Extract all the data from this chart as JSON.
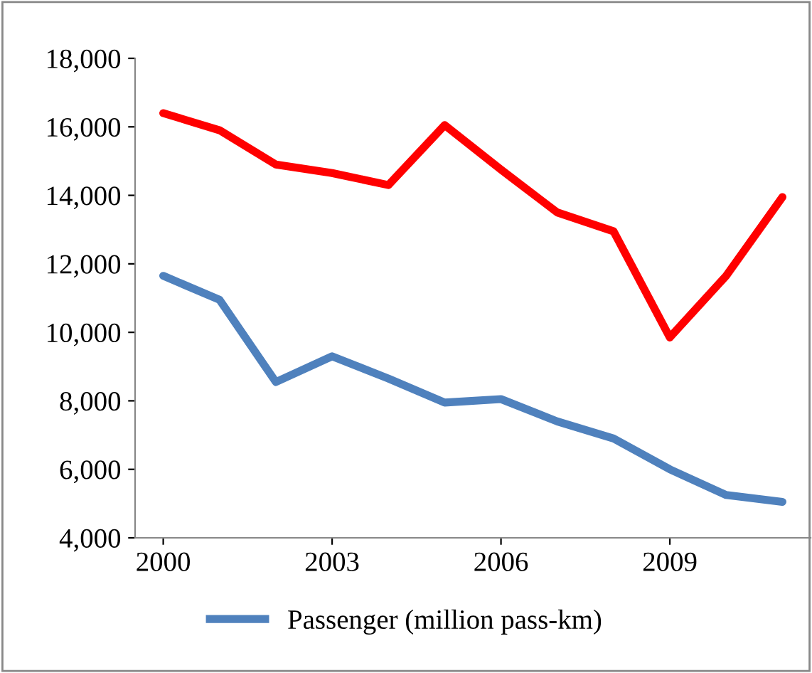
{
  "chart_data": {
    "type": "line",
    "x": [
      2000,
      2001,
      2002,
      2003,
      2004,
      2005,
      2006,
      2007,
      2008,
      2009,
      2010,
      2011
    ],
    "series": [
      {
        "color": "#ff0000",
        "values": [
          16400,
          15900,
          14900,
          14650,
          14300,
          16050,
          14750,
          13500,
          12950,
          9850,
          11650,
          13950
        ]
      },
      {
        "name": "Passenger (million pass-km)",
        "color": "#4f81bd",
        "values": [
          11650,
          10950,
          8550,
          9300,
          8650,
          7950,
          8050,
          7400,
          6900,
          6000,
          5250,
          5050
        ]
      }
    ],
    "xlim": [
      1999.5,
      2011.5
    ],
    "xticks": [
      2000,
      2003,
      2006,
      2009
    ],
    "ylim": [
      4000,
      18000
    ],
    "yticks": [
      {
        "value": 4000,
        "label": "4,000"
      },
      {
        "value": 6000,
        "label": "6,000"
      },
      {
        "value": 8000,
        "label": "8,000"
      },
      {
        "value": 10000,
        "label": "10,000"
      },
      {
        "value": 12000,
        "label": "12,000"
      },
      {
        "value": 14000,
        "label": "14,000"
      },
      {
        "value": 16000,
        "label": "16,000"
      },
      {
        "value": 18000,
        "label": "18,000"
      }
    ],
    "grid": false,
    "legend": "bottom",
    "marker": "none",
    "line_style": "solid"
  }
}
